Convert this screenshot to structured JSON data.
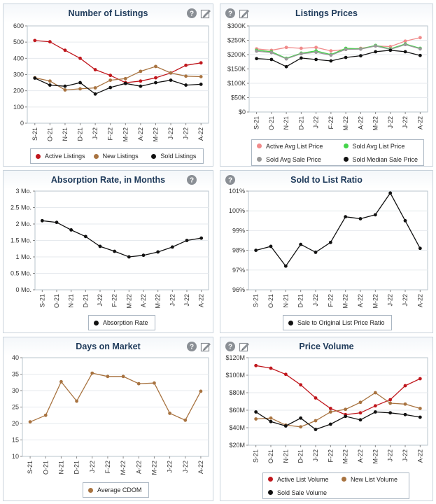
{
  "charts": [
    {
      "title": "Number of Listings",
      "has_help": true,
      "has_edit": true,
      "chart_data": {
        "type": "line",
        "x": [
          "S-21",
          "O-21",
          "N-21",
          "D-21",
          "J-22",
          "F-22",
          "M-22",
          "A-22",
          "M-22",
          "J-22",
          "J-22",
          "A-22"
        ],
        "ylim": [
          0,
          600
        ],
        "yticks": [
          0,
          100,
          200,
          300,
          400,
          500,
          600
        ],
        "ytick_labels": [
          "0",
          "100",
          "200",
          "300",
          "400",
          "500",
          "600"
        ],
        "series": [
          {
            "name": "Active Listings",
            "color": "#c0171d",
            "values": [
              510,
              502,
              450,
              400,
              330,
              295,
              250,
              260,
              280,
              310,
              357,
              372
            ]
          },
          {
            "name": "New Listings",
            "color": "#a87340",
            "values": [
              280,
              260,
              205,
              212,
              218,
              265,
              275,
              320,
              350,
              310,
              290,
              287
            ]
          },
          {
            "name": "Sold Listings",
            "color": "#111111",
            "values": [
              278,
              235,
              228,
              250,
              180,
              220,
              245,
              228,
              250,
              265,
              235,
              240
            ]
          }
        ]
      }
    },
    {
      "title": "Listings Prices",
      "has_help": true,
      "has_edit": true,
      "chart_data": {
        "type": "line",
        "x": [
          "S-21",
          "O-21",
          "N-21",
          "D-21",
          "J-22",
          "F-22",
          "M-22",
          "A-22",
          "M-22",
          "J-22",
          "J-22",
          "A-22"
        ],
        "ylim": [
          0,
          300000
        ],
        "yticks": [
          0,
          50000,
          100000,
          150000,
          200000,
          250000,
          300000
        ],
        "ytick_labels": [
          "$0",
          "$50K",
          "$100K",
          "$150K",
          "$200K",
          "$250K",
          "$300K"
        ],
        "series": [
          {
            "name": "Active Avg List Price",
            "color": "#f08a8a",
            "values": [
              220000,
              215000,
              225000,
              222000,
              225000,
              213000,
              218000,
              222000,
              230000,
              228000,
              247000,
              259000
            ]
          },
          {
            "name": "Sold Avg List Price",
            "color": "#44d44a",
            "values": [
              215000,
              210000,
              187000,
              205000,
              213000,
              200000,
              222000,
              220000,
              232000,
              220000,
              237000,
              222000
            ]
          },
          {
            "name": "Sold Avg Sale Price",
            "color": "#999999",
            "values": [
              212000,
              207000,
              185000,
              203000,
              208000,
              198000,
              218000,
              219000,
              230000,
              218000,
              235000,
              220000
            ]
          },
          {
            "name": "Sold Median Sale Price",
            "color": "#111111",
            "values": [
              186000,
              183000,
              158000,
              188000,
              183000,
              178000,
              190000,
              196000,
              210000,
              215000,
              210000,
              197000
            ]
          }
        ]
      }
    },
    {
      "title": "Absorption Rate, in Months",
      "has_help": true,
      "has_edit": false,
      "chart_data": {
        "type": "line",
        "x": [
          "S-21",
          "O-21",
          "N-21",
          "D-21",
          "J-22",
          "F-22",
          "M-22",
          "A-22",
          "M-22",
          "J-22",
          "J-22",
          "A-22"
        ],
        "ylim": [
          0,
          3
        ],
        "yticks": [
          0,
          0.5,
          1,
          1.5,
          2,
          2.5,
          3
        ],
        "ytick_labels": [
          "0 Mo.",
          "0.5 Mo.",
          "1 Mo.",
          "1.5 Mo.",
          "2 Mo.",
          "2.5 Mo.",
          "3 Mo."
        ],
        "series": [
          {
            "name": "Absorption Rate",
            "color": "#111111",
            "values": [
              2.1,
              2.05,
              1.82,
              1.62,
              1.32,
              1.17,
              1.0,
              1.05,
              1.15,
              1.3,
              1.5,
              1.57
            ]
          }
        ]
      }
    },
    {
      "title": "Sold to List Ratio",
      "has_help": true,
      "has_edit": false,
      "chart_data": {
        "type": "line",
        "x": [
          "S-21",
          "O-21",
          "N-21",
          "D-21",
          "J-22",
          "F-22",
          "M-22",
          "A-22",
          "M-22",
          "J-22",
          "J-22",
          "A-22"
        ],
        "ylim": [
          96,
          101
        ],
        "yticks": [
          96,
          97,
          98,
          99,
          100,
          101
        ],
        "ytick_labels": [
          "96%",
          "97%",
          "98%",
          "99%",
          "100%",
          "101%"
        ],
        "series": [
          {
            "name": "Sale to Original List Price Ratio",
            "color": "#111111",
            "values": [
              98.0,
              98.2,
              97.2,
              98.3,
              97.9,
              98.4,
              99.7,
              99.6,
              99.8,
              100.9,
              99.5,
              98.1
            ]
          }
        ]
      }
    },
    {
      "title": "Days on Market",
      "has_help": true,
      "has_edit": true,
      "chart_data": {
        "type": "line",
        "x": [
          "S-21",
          "O-21",
          "N-21",
          "D-21",
          "J-22",
          "F-22",
          "M-22",
          "A-22",
          "M-22",
          "J-22",
          "J-22",
          "A-22"
        ],
        "ylim": [
          10,
          40
        ],
        "yticks": [
          10,
          15,
          20,
          25,
          30,
          35,
          40
        ],
        "ytick_labels": [
          "10",
          "15",
          "20",
          "25",
          "30",
          "35",
          "40"
        ],
        "series": [
          {
            "name": "Average CDOM",
            "color": "#a87340",
            "values": [
              20.5,
              22.5,
              32.7,
              26.8,
              35.3,
              34.3,
              34.3,
              32.1,
              32.3,
              23.1,
              21.0,
              29.8
            ]
          }
        ]
      }
    },
    {
      "title": "Price Volume",
      "has_help": true,
      "has_edit": true,
      "chart_data": {
        "type": "line",
        "x": [
          "S-21",
          "O-21",
          "N-21",
          "D-21",
          "J-22",
          "F-22",
          "M-22",
          "A-22",
          "M-22",
          "J-22",
          "J-22",
          "A-22"
        ],
        "ylim": [
          20000000,
          120000000
        ],
        "yticks": [
          20000000,
          40000000,
          60000000,
          80000000,
          100000000,
          120000000
        ],
        "ytick_labels": [
          "$20M",
          "$40M",
          "$60M",
          "$80M",
          "$100M",
          "$120M"
        ],
        "series": [
          {
            "name": "Active List Volume",
            "color": "#c0171d",
            "values": [
              111000000,
              108000000,
              101000000,
              89000000,
              74000000,
              62000000,
              55000000,
              57000000,
              65000000,
              72000000,
              88000000,
              96000000
            ]
          },
          {
            "name": "New List Volume",
            "color": "#a87340",
            "values": [
              50000000,
              51000000,
              43000000,
              41000000,
              48000000,
              58000000,
              61000000,
              69000000,
              80000000,
              68000000,
              67000000,
              62000000
            ]
          },
          {
            "name": "Sold Sale Volume",
            "color": "#111111",
            "values": [
              58000000,
              47000000,
              42000000,
              51000000,
              38000000,
              44000000,
              53000000,
              49000000,
              58000000,
              57000000,
              55000000,
              52000000
            ]
          }
        ]
      }
    }
  ]
}
